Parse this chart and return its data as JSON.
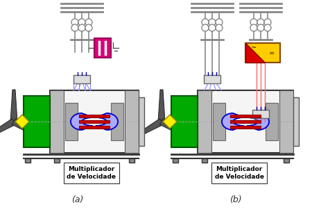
{
  "background_color": "#ffffff",
  "label_a": "(a)",
  "label_b": "(b)",
  "mult_text": "Multiplicador\nde Velocidade",
  "fig_width": 4.5,
  "fig_height": 3.08,
  "dpi": 100
}
